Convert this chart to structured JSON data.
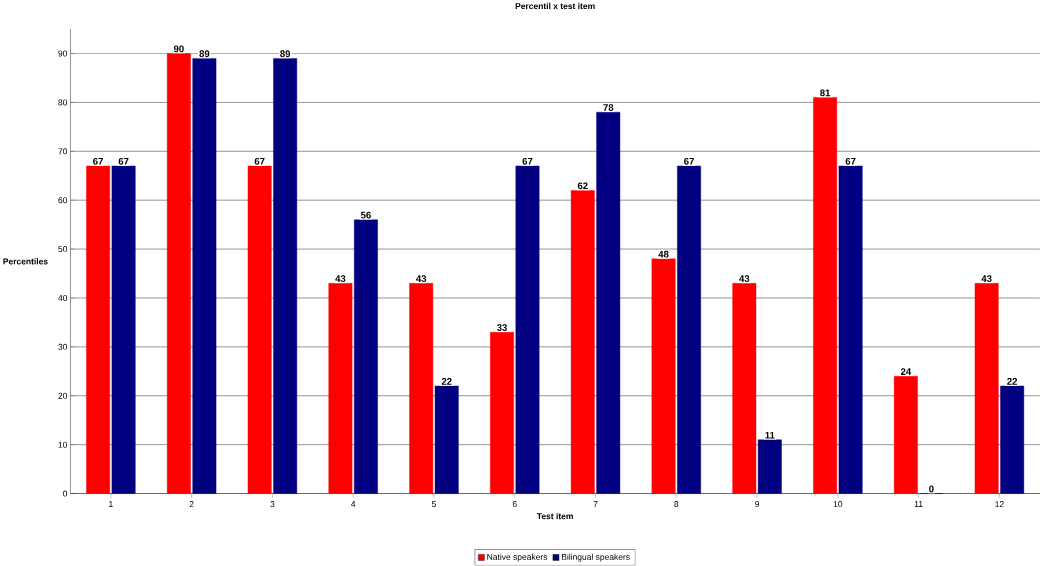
{
  "chart_data": {
    "type": "bar",
    "title": "Percentil x test item",
    "xlabel": "Test item",
    "ylabel": "Percentiles",
    "categories": [
      "1",
      "2",
      "3",
      "4",
      "5",
      "6",
      "7",
      "8",
      "9",
      "10",
      "11",
      "12"
    ],
    "series": [
      {
        "name": "Native speakers",
        "color": "#ff0000",
        "values": [
          67,
          90,
          67,
          43,
          43,
          33,
          62,
          48,
          43,
          81,
          24,
          43
        ]
      },
      {
        "name": "Bilingual speakers",
        "color": "#000080",
        "values": [
          67,
          89,
          89,
          56,
          22,
          67,
          78,
          67,
          11,
          67,
          0,
          22
        ]
      }
    ],
    "ylim": [
      0,
      95
    ],
    "yticks": [
      0,
      10,
      20,
      30,
      40,
      50,
      60,
      70,
      80,
      90
    ],
    "grid": "y",
    "legend": "bottom",
    "data_labels": true
  }
}
